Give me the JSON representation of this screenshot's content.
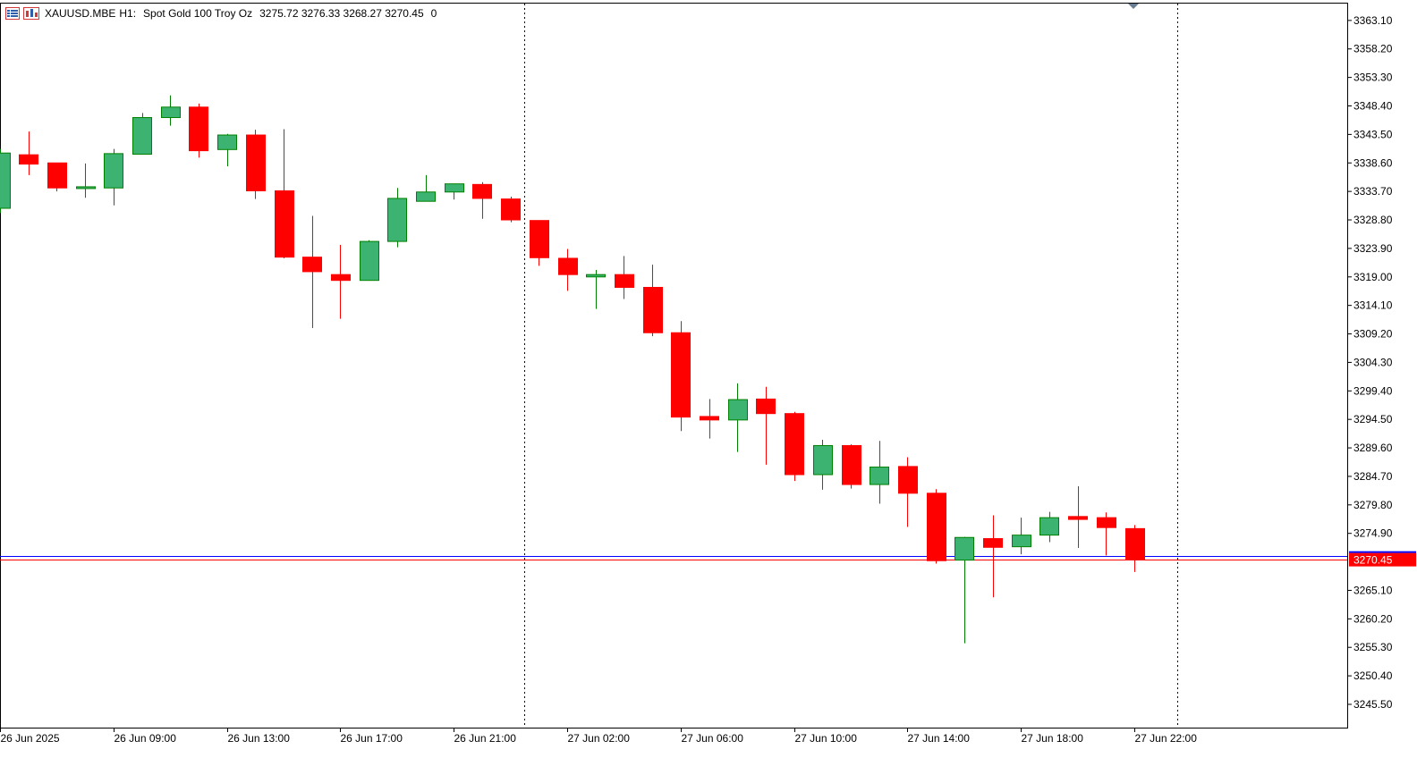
{
  "header": {
    "symbol": "XAUUSD.MBE",
    "timeframe": "H1:",
    "description": "Spot Gold 100 Troy Oz",
    "ohlc": "3275.72 3276.33 3268.27 3270.45",
    "volume": "0",
    "icons": [
      "chart-menu-icon",
      "chart-bars-icon"
    ]
  },
  "colors": {
    "bull": "#3cb371",
    "bear": "#ff0000",
    "bull_wick": "#008000",
    "bear_wick": "#ff0000",
    "bid_line": "#ff0000",
    "ask_line": "#0000ff",
    "price_label_bg": "#ff0000",
    "grid_separator": "#000000"
  },
  "chart_data": {
    "type": "candlestick",
    "ylim": [
      3241.5,
      3366.0
    ],
    "yticks": [
      "3363.10",
      "3358.20",
      "3353.30",
      "3348.40",
      "3343.50",
      "3338.60",
      "3333.70",
      "3328.80",
      "3323.90",
      "3319.00",
      "3314.10",
      "3309.20",
      "3304.30",
      "3299.40",
      "3294.50",
      "3289.60",
      "3284.70",
      "3279.80",
      "3274.90",
      "3270.45",
      "3265.10",
      "3260.20",
      "3255.30",
      "3250.40",
      "3245.50"
    ],
    "xticks": [
      {
        "index": 0,
        "label": "26 Jun 2025"
      },
      {
        "index": 4,
        "label": "26 Jun 09:00"
      },
      {
        "index": 8,
        "label": "26 Jun 13:00"
      },
      {
        "index": 12,
        "label": "26 Jun 17:00"
      },
      {
        "index": 16,
        "label": "26 Jun 21:00"
      },
      {
        "index": 20,
        "label": "27 Jun 02:00"
      },
      {
        "index": 24,
        "label": "27 Jun 06:00"
      },
      {
        "index": 28,
        "label": "27 Jun 10:00"
      },
      {
        "index": 32,
        "label": "27 Jun 14:00"
      },
      {
        "index": 36,
        "label": "27 Jun 18:00"
      },
      {
        "index": 40,
        "label": "27 Jun 22:00"
      }
    ],
    "day_separators_after_index": [
      18.5,
      41.5
    ],
    "current_price": 3270.45,
    "ask_price": 3270.9,
    "candles": [
      {
        "o": 3330.8,
        "h": 3341.0,
        "l": 3330.0,
        "c": 3340.3
      },
      {
        "o": 3340.0,
        "h": 3344.0,
        "l": 3336.5,
        "c": 3338.4
      },
      {
        "o": 3338.6,
        "h": 3338.6,
        "l": 3333.7,
        "c": 3334.3
      },
      {
        "o": 3334.3,
        "h": 3338.5,
        "l": 3332.6,
        "c": 3334.5
      },
      {
        "o": 3334.3,
        "h": 3341.0,
        "l": 3331.3,
        "c": 3340.2
      },
      {
        "o": 3340.1,
        "h": 3347.2,
        "l": 3340.1,
        "c": 3346.4
      },
      {
        "o": 3346.4,
        "h": 3350.2,
        "l": 3345.0,
        "c": 3348.2
      },
      {
        "o": 3348.2,
        "h": 3348.8,
        "l": 3339.5,
        "c": 3340.7
      },
      {
        "o": 3340.9,
        "h": 3343.6,
        "l": 3338.0,
        "c": 3343.4
      },
      {
        "o": 3343.4,
        "h": 3344.3,
        "l": 3332.4,
        "c": 3333.8
      },
      {
        "o": 3333.8,
        "h": 3344.4,
        "l": 3322.2,
        "c": 3322.4
      },
      {
        "o": 3322.4,
        "h": 3329.5,
        "l": 3310.2,
        "c": 3319.9
      },
      {
        "o": 3319.4,
        "h": 3324.5,
        "l": 3311.8,
        "c": 3318.4
      },
      {
        "o": 3318.4,
        "h": 3325.3,
        "l": 3318.4,
        "c": 3325.1
      },
      {
        "o": 3325.1,
        "h": 3334.3,
        "l": 3324.1,
        "c": 3332.5
      },
      {
        "o": 3332.0,
        "h": 3336.5,
        "l": 3332.0,
        "c": 3333.6
      },
      {
        "o": 3333.6,
        "h": 3334.9,
        "l": 3332.3,
        "c": 3335.0
      },
      {
        "o": 3334.9,
        "h": 3335.3,
        "l": 3329.0,
        "c": 3332.5
      },
      {
        "o": 3332.4,
        "h": 3332.8,
        "l": 3328.4,
        "c": 3328.8
      },
      {
        "o": 3328.7,
        "h": 3328.7,
        "l": 3320.9,
        "c": 3322.3
      },
      {
        "o": 3322.2,
        "h": 3323.8,
        "l": 3316.6,
        "c": 3319.4
      },
      {
        "o": 3319.0,
        "h": 3320.2,
        "l": 3313.5,
        "c": 3319.4
      },
      {
        "o": 3319.4,
        "h": 3322.6,
        "l": 3315.2,
        "c": 3317.2
      },
      {
        "o": 3317.2,
        "h": 3321.1,
        "l": 3308.8,
        "c": 3309.4
      },
      {
        "o": 3309.4,
        "h": 3311.4,
        "l": 3292.5,
        "c": 3294.9
      },
      {
        "o": 3295.0,
        "h": 3298.0,
        "l": 3291.2,
        "c": 3294.4
      },
      {
        "o": 3294.4,
        "h": 3300.7,
        "l": 3288.9,
        "c": 3297.9
      },
      {
        "o": 3298.0,
        "h": 3300.1,
        "l": 3286.7,
        "c": 3295.5
      },
      {
        "o": 3295.5,
        "h": 3295.8,
        "l": 3283.9,
        "c": 3285.0
      },
      {
        "o": 3285.0,
        "h": 3291.0,
        "l": 3282.4,
        "c": 3290.0
      },
      {
        "o": 3290.0,
        "h": 3290.2,
        "l": 3282.6,
        "c": 3283.3
      },
      {
        "o": 3283.3,
        "h": 3290.8,
        "l": 3280.0,
        "c": 3286.3
      },
      {
        "o": 3286.4,
        "h": 3288.0,
        "l": 3276.0,
        "c": 3281.8
      },
      {
        "o": 3281.8,
        "h": 3282.5,
        "l": 3269.7,
        "c": 3270.2
      },
      {
        "o": 3270.3,
        "h": 3274.3,
        "l": 3256.0,
        "c": 3274.2
      },
      {
        "o": 3274.0,
        "h": 3278.0,
        "l": 3263.9,
        "c": 3272.5
      },
      {
        "o": 3272.6,
        "h": 3277.6,
        "l": 3271.3,
        "c": 3274.6
      },
      {
        "o": 3274.6,
        "h": 3278.6,
        "l": 3273.4,
        "c": 3277.6
      },
      {
        "o": 3277.8,
        "h": 3283.0,
        "l": 3272.4,
        "c": 3277.3
      },
      {
        "o": 3277.6,
        "h": 3278.5,
        "l": 3271.1,
        "c": 3275.9
      },
      {
        "o": 3275.72,
        "h": 3276.33,
        "l": 3268.27,
        "c": 3270.45
      }
    ]
  }
}
